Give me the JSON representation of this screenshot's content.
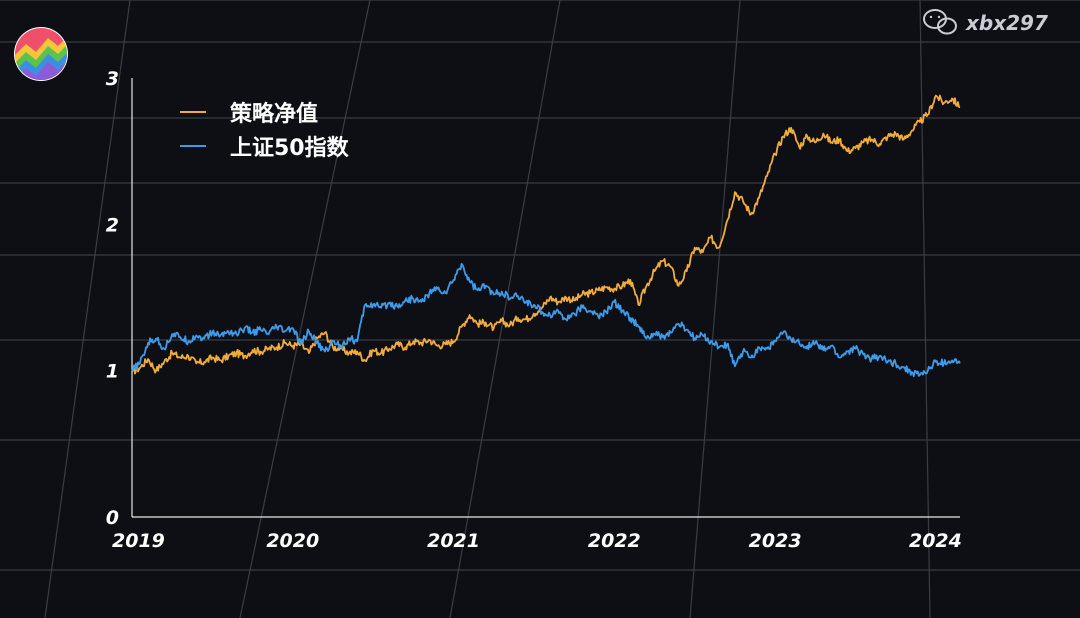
{
  "watermark": {
    "icon": "wechat-icon",
    "text": "xbx297"
  },
  "logo": {
    "icon": "colorful-zigzag-logo"
  },
  "chart_data": {
    "type": "line",
    "title": "",
    "xlabel": "",
    "ylabel": "",
    "xlim": [
      2019.0,
      2024.15
    ],
    "ylim": [
      0,
      3
    ],
    "x_ticks": [
      "2019",
      "2020",
      "2021",
      "2022",
      "2023",
      "2024"
    ],
    "y_ticks": [
      "0",
      "1",
      "2",
      "3"
    ],
    "grid": true,
    "legend_position": "top-left",
    "series": [
      {
        "name": "策略净值",
        "color": "#f2ac3c",
        "points": [
          [
            2019.0,
            0.99
          ],
          [
            2019.05,
            1.02
          ],
          [
            2019.1,
            1.08
          ],
          [
            2019.15,
            1.0
          ],
          [
            2019.2,
            1.06
          ],
          [
            2019.25,
            1.12
          ],
          [
            2019.3,
            1.09
          ],
          [
            2019.35,
            1.1
          ],
          [
            2019.4,
            1.05
          ],
          [
            2019.45,
            1.06
          ],
          [
            2019.5,
            1.09
          ],
          [
            2019.55,
            1.07
          ],
          [
            2019.6,
            1.1
          ],
          [
            2019.65,
            1.12
          ],
          [
            2019.7,
            1.1
          ],
          [
            2019.75,
            1.14
          ],
          [
            2019.8,
            1.13
          ],
          [
            2019.85,
            1.15
          ],
          [
            2019.9,
            1.16
          ],
          [
            2019.95,
            1.19
          ],
          [
            2020.0,
            1.17
          ],
          [
            2020.05,
            1.18
          ],
          [
            2020.1,
            1.12
          ],
          [
            2020.15,
            1.22
          ],
          [
            2020.2,
            1.26
          ],
          [
            2020.25,
            1.16
          ],
          [
            2020.3,
            1.15
          ],
          [
            2020.35,
            1.12
          ],
          [
            2020.4,
            1.13
          ],
          [
            2020.45,
            1.07
          ],
          [
            2020.5,
            1.14
          ],
          [
            2020.55,
            1.12
          ],
          [
            2020.6,
            1.15
          ],
          [
            2020.65,
            1.18
          ],
          [
            2020.7,
            1.16
          ],
          [
            2020.75,
            1.2
          ],
          [
            2020.8,
            1.19
          ],
          [
            2020.85,
            1.21
          ],
          [
            2020.9,
            1.17
          ],
          [
            2020.95,
            1.18
          ],
          [
            2021.0,
            1.2
          ],
          [
            2021.05,
            1.3
          ],
          [
            2021.1,
            1.38
          ],
          [
            2021.15,
            1.32
          ],
          [
            2021.2,
            1.33
          ],
          [
            2021.25,
            1.29
          ],
          [
            2021.3,
            1.34
          ],
          [
            2021.35,
            1.31
          ],
          [
            2021.4,
            1.36
          ],
          [
            2021.45,
            1.35
          ],
          [
            2021.5,
            1.39
          ],
          [
            2021.55,
            1.43
          ],
          [
            2021.6,
            1.5
          ],
          [
            2021.65,
            1.47
          ],
          [
            2021.7,
            1.5
          ],
          [
            2021.75,
            1.48
          ],
          [
            2021.8,
            1.52
          ],
          [
            2021.85,
            1.53
          ],
          [
            2021.9,
            1.55
          ],
          [
            2021.95,
            1.57
          ],
          [
            2022.0,
            1.56
          ],
          [
            2022.05,
            1.58
          ],
          [
            2022.1,
            1.62
          ],
          [
            2022.15,
            1.45
          ],
          [
            2022.2,
            1.58
          ],
          [
            2022.25,
            1.68
          ],
          [
            2022.3,
            1.75
          ],
          [
            2022.35,
            1.71
          ],
          [
            2022.4,
            1.58
          ],
          [
            2022.45,
            1.68
          ],
          [
            2022.5,
            1.84
          ],
          [
            2022.55,
            1.81
          ],
          [
            2022.6,
            1.91
          ],
          [
            2022.65,
            1.84
          ],
          [
            2022.7,
            2.02
          ],
          [
            2022.75,
            2.22
          ],
          [
            2022.8,
            2.16
          ],
          [
            2022.85,
            2.07
          ],
          [
            2022.9,
            2.18
          ],
          [
            2022.95,
            2.33
          ],
          [
            2023.0,
            2.48
          ],
          [
            2023.05,
            2.6
          ],
          [
            2023.1,
            2.66
          ],
          [
            2023.15,
            2.53
          ],
          [
            2023.2,
            2.6
          ],
          [
            2023.25,
            2.56
          ],
          [
            2023.3,
            2.62
          ],
          [
            2023.35,
            2.56
          ],
          [
            2023.4,
            2.58
          ],
          [
            2023.45,
            2.5
          ],
          [
            2023.5,
            2.52
          ],
          [
            2023.55,
            2.56
          ],
          [
            2023.6,
            2.58
          ],
          [
            2023.65,
            2.55
          ],
          [
            2023.7,
            2.6
          ],
          [
            2023.75,
            2.62
          ],
          [
            2023.8,
            2.58
          ],
          [
            2023.85,
            2.64
          ],
          [
            2023.9,
            2.7
          ],
          [
            2023.95,
            2.75
          ],
          [
            2024.0,
            2.88
          ],
          [
            2024.05,
            2.83
          ],
          [
            2024.1,
            2.86
          ],
          [
            2024.15,
            2.8
          ]
        ]
      },
      {
        "name": "上证50指数",
        "color": "#3d9be9",
        "points": [
          [
            2019.0,
            1.0
          ],
          [
            2019.05,
            1.05
          ],
          [
            2019.1,
            1.19
          ],
          [
            2019.15,
            1.22
          ],
          [
            2019.2,
            1.15
          ],
          [
            2019.25,
            1.25
          ],
          [
            2019.3,
            1.23
          ],
          [
            2019.35,
            1.2
          ],
          [
            2019.4,
            1.24
          ],
          [
            2019.45,
            1.22
          ],
          [
            2019.5,
            1.26
          ],
          [
            2019.55,
            1.24
          ],
          [
            2019.6,
            1.27
          ],
          [
            2019.65,
            1.25
          ],
          [
            2019.7,
            1.29
          ],
          [
            2019.75,
            1.26
          ],
          [
            2019.8,
            1.28
          ],
          [
            2019.85,
            1.25
          ],
          [
            2019.9,
            1.3
          ],
          [
            2019.95,
            1.27
          ],
          [
            2020.0,
            1.29
          ],
          [
            2020.05,
            1.18
          ],
          [
            2020.1,
            1.27
          ],
          [
            2020.15,
            1.19
          ],
          [
            2020.2,
            1.13
          ],
          [
            2020.25,
            1.2
          ],
          [
            2020.3,
            1.17
          ],
          [
            2020.35,
            1.22
          ],
          [
            2020.4,
            1.2
          ],
          [
            2020.45,
            1.45
          ],
          [
            2020.5,
            1.45
          ],
          [
            2020.55,
            1.43
          ],
          [
            2020.6,
            1.46
          ],
          [
            2020.65,
            1.44
          ],
          [
            2020.7,
            1.48
          ],
          [
            2020.75,
            1.49
          ],
          [
            2020.8,
            1.47
          ],
          [
            2020.85,
            1.53
          ],
          [
            2020.9,
            1.56
          ],
          [
            2020.95,
            1.53
          ],
          [
            2021.0,
            1.62
          ],
          [
            2021.05,
            1.73
          ],
          [
            2021.1,
            1.61
          ],
          [
            2021.15,
            1.55
          ],
          [
            2021.2,
            1.58
          ],
          [
            2021.25,
            1.52
          ],
          [
            2021.3,
            1.54
          ],
          [
            2021.35,
            1.49
          ],
          [
            2021.4,
            1.51
          ],
          [
            2021.45,
            1.47
          ],
          [
            2021.5,
            1.45
          ],
          [
            2021.55,
            1.4
          ],
          [
            2021.6,
            1.38
          ],
          [
            2021.65,
            1.41
          ],
          [
            2021.7,
            1.35
          ],
          [
            2021.75,
            1.39
          ],
          [
            2021.8,
            1.43
          ],
          [
            2021.85,
            1.41
          ],
          [
            2021.9,
            1.37
          ],
          [
            2021.95,
            1.4
          ],
          [
            2022.0,
            1.47
          ],
          [
            2022.05,
            1.41
          ],
          [
            2022.1,
            1.36
          ],
          [
            2022.15,
            1.3
          ],
          [
            2022.2,
            1.22
          ],
          [
            2022.25,
            1.25
          ],
          [
            2022.3,
            1.23
          ],
          [
            2022.35,
            1.26
          ],
          [
            2022.4,
            1.32
          ],
          [
            2022.45,
            1.28
          ],
          [
            2022.5,
            1.22
          ],
          [
            2022.55,
            1.24
          ],
          [
            2022.6,
            1.2
          ],
          [
            2022.65,
            1.16
          ],
          [
            2022.7,
            1.18
          ],
          [
            2022.75,
            1.03
          ],
          [
            2022.8,
            1.13
          ],
          [
            2022.85,
            1.09
          ],
          [
            2022.9,
            1.16
          ],
          [
            2022.95,
            1.15
          ],
          [
            2023.0,
            1.2
          ],
          [
            2023.05,
            1.26
          ],
          [
            2023.1,
            1.21
          ],
          [
            2023.15,
            1.19
          ],
          [
            2023.2,
            1.17
          ],
          [
            2023.25,
            1.19
          ],
          [
            2023.3,
            1.14
          ],
          [
            2023.35,
            1.17
          ],
          [
            2023.4,
            1.09
          ],
          [
            2023.45,
            1.13
          ],
          [
            2023.5,
            1.15
          ],
          [
            2023.55,
            1.11
          ],
          [
            2023.6,
            1.08
          ],
          [
            2023.65,
            1.1
          ],
          [
            2023.7,
            1.06
          ],
          [
            2023.75,
            1.05
          ],
          [
            2023.8,
            1.02
          ],
          [
            2023.85,
            0.99
          ],
          [
            2023.9,
            0.97
          ],
          [
            2023.95,
            1.0
          ],
          [
            2024.0,
            1.06
          ],
          [
            2024.05,
            1.05
          ],
          [
            2024.1,
            1.07
          ],
          [
            2024.15,
            1.05
          ]
        ]
      }
    ]
  }
}
